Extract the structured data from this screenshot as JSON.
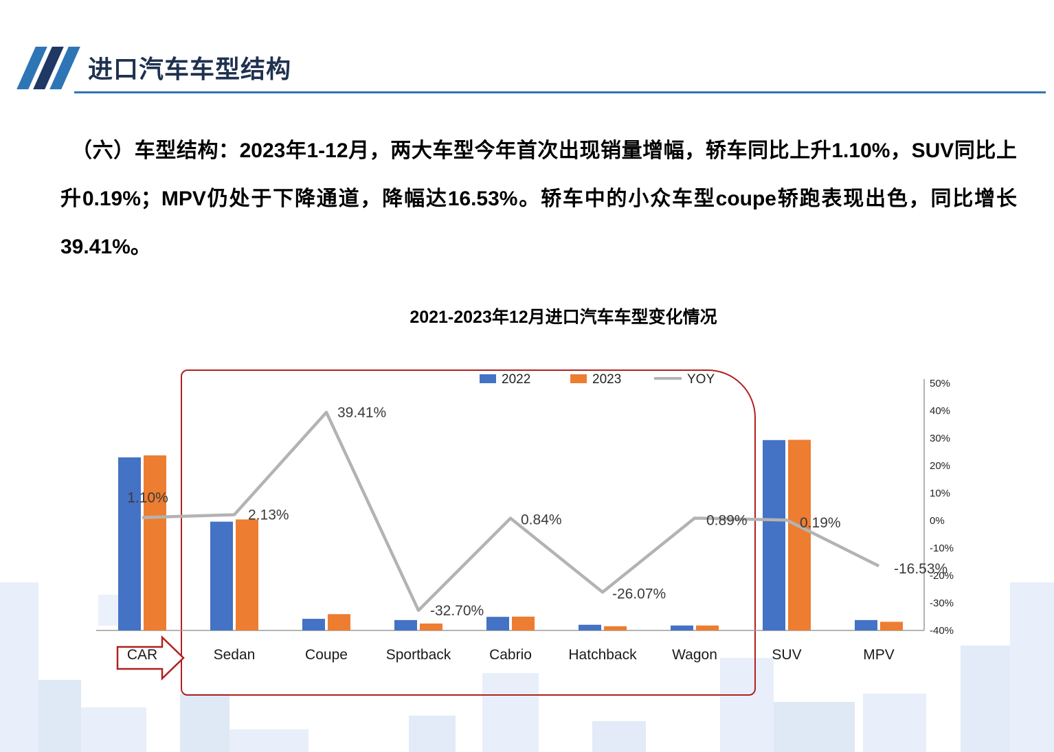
{
  "header": {
    "title": "进口汽车车型结构",
    "logo_colors": [
      "#2E75B6",
      "#1F3864",
      "#2E75B6"
    ],
    "rule_color": "#2E75B6"
  },
  "body_text": "（六）车型结构：2023年1-12月，两大车型今年首次出现销量增幅，轿车同比上升1.10%，SUV同比上升0.19%；MPV仍处于下降通道，降幅达16.53%。轿车中的小众车型coupe轿跑表现出色，同比增长39.41%。",
  "chart_data": {
    "type": "combo-bar-line",
    "title": "2021-2023年12月进口汽车车型变化情况",
    "categories": [
      "CAR",
      "Sedan",
      "Coupe",
      "Sportback",
      "Cabrio",
      "Hatchback",
      "Wagon",
      "SUV",
      "MPV"
    ],
    "series": [
      {
        "name": "2022",
        "type": "bar",
        "color": "#4472C4",
        "values": [
          70,
          44,
          4.7,
          4.2,
          5.5,
          2.3,
          2.0,
          77,
          4.2
        ]
      },
      {
        "name": "2023",
        "type": "bar",
        "color": "#ED7D31",
        "values": [
          70.8,
          44.9,
          6.6,
          2.8,
          5.6,
          1.7,
          2.0,
          77.1,
          3.5
        ]
      },
      {
        "name": "YOY",
        "type": "line",
        "color": "#B3B3B3",
        "axis": "right",
        "values": [
          1.1,
          2.13,
          39.41,
          -32.7,
          0.84,
          -26.07,
          0.89,
          0.19,
          -16.53
        ]
      }
    ],
    "yoy_labels": [
      "1.10%",
      "2.13%",
      "39.41%",
      "-32.70%",
      "0.84%",
      "-26.07%",
      "0.89%",
      "0.19%",
      "-16.53%"
    ],
    "right_axis": {
      "ticks": [
        "50%",
        "40%",
        "30%",
        "20%",
        "10%",
        "0%",
        "-10%",
        "-20%",
        "-30%",
        "-40%"
      ],
      "min": -40,
      "max": 50
    },
    "legend": [
      {
        "label": "2022",
        "color": "#4472C4",
        "type": "bar"
      },
      {
        "label": "2023",
        "color": "#ED7D31",
        "type": "bar"
      },
      {
        "label": "YOY",
        "color": "#B3B3B3",
        "type": "line"
      }
    ],
    "highlight_box_color": "#B02020"
  }
}
